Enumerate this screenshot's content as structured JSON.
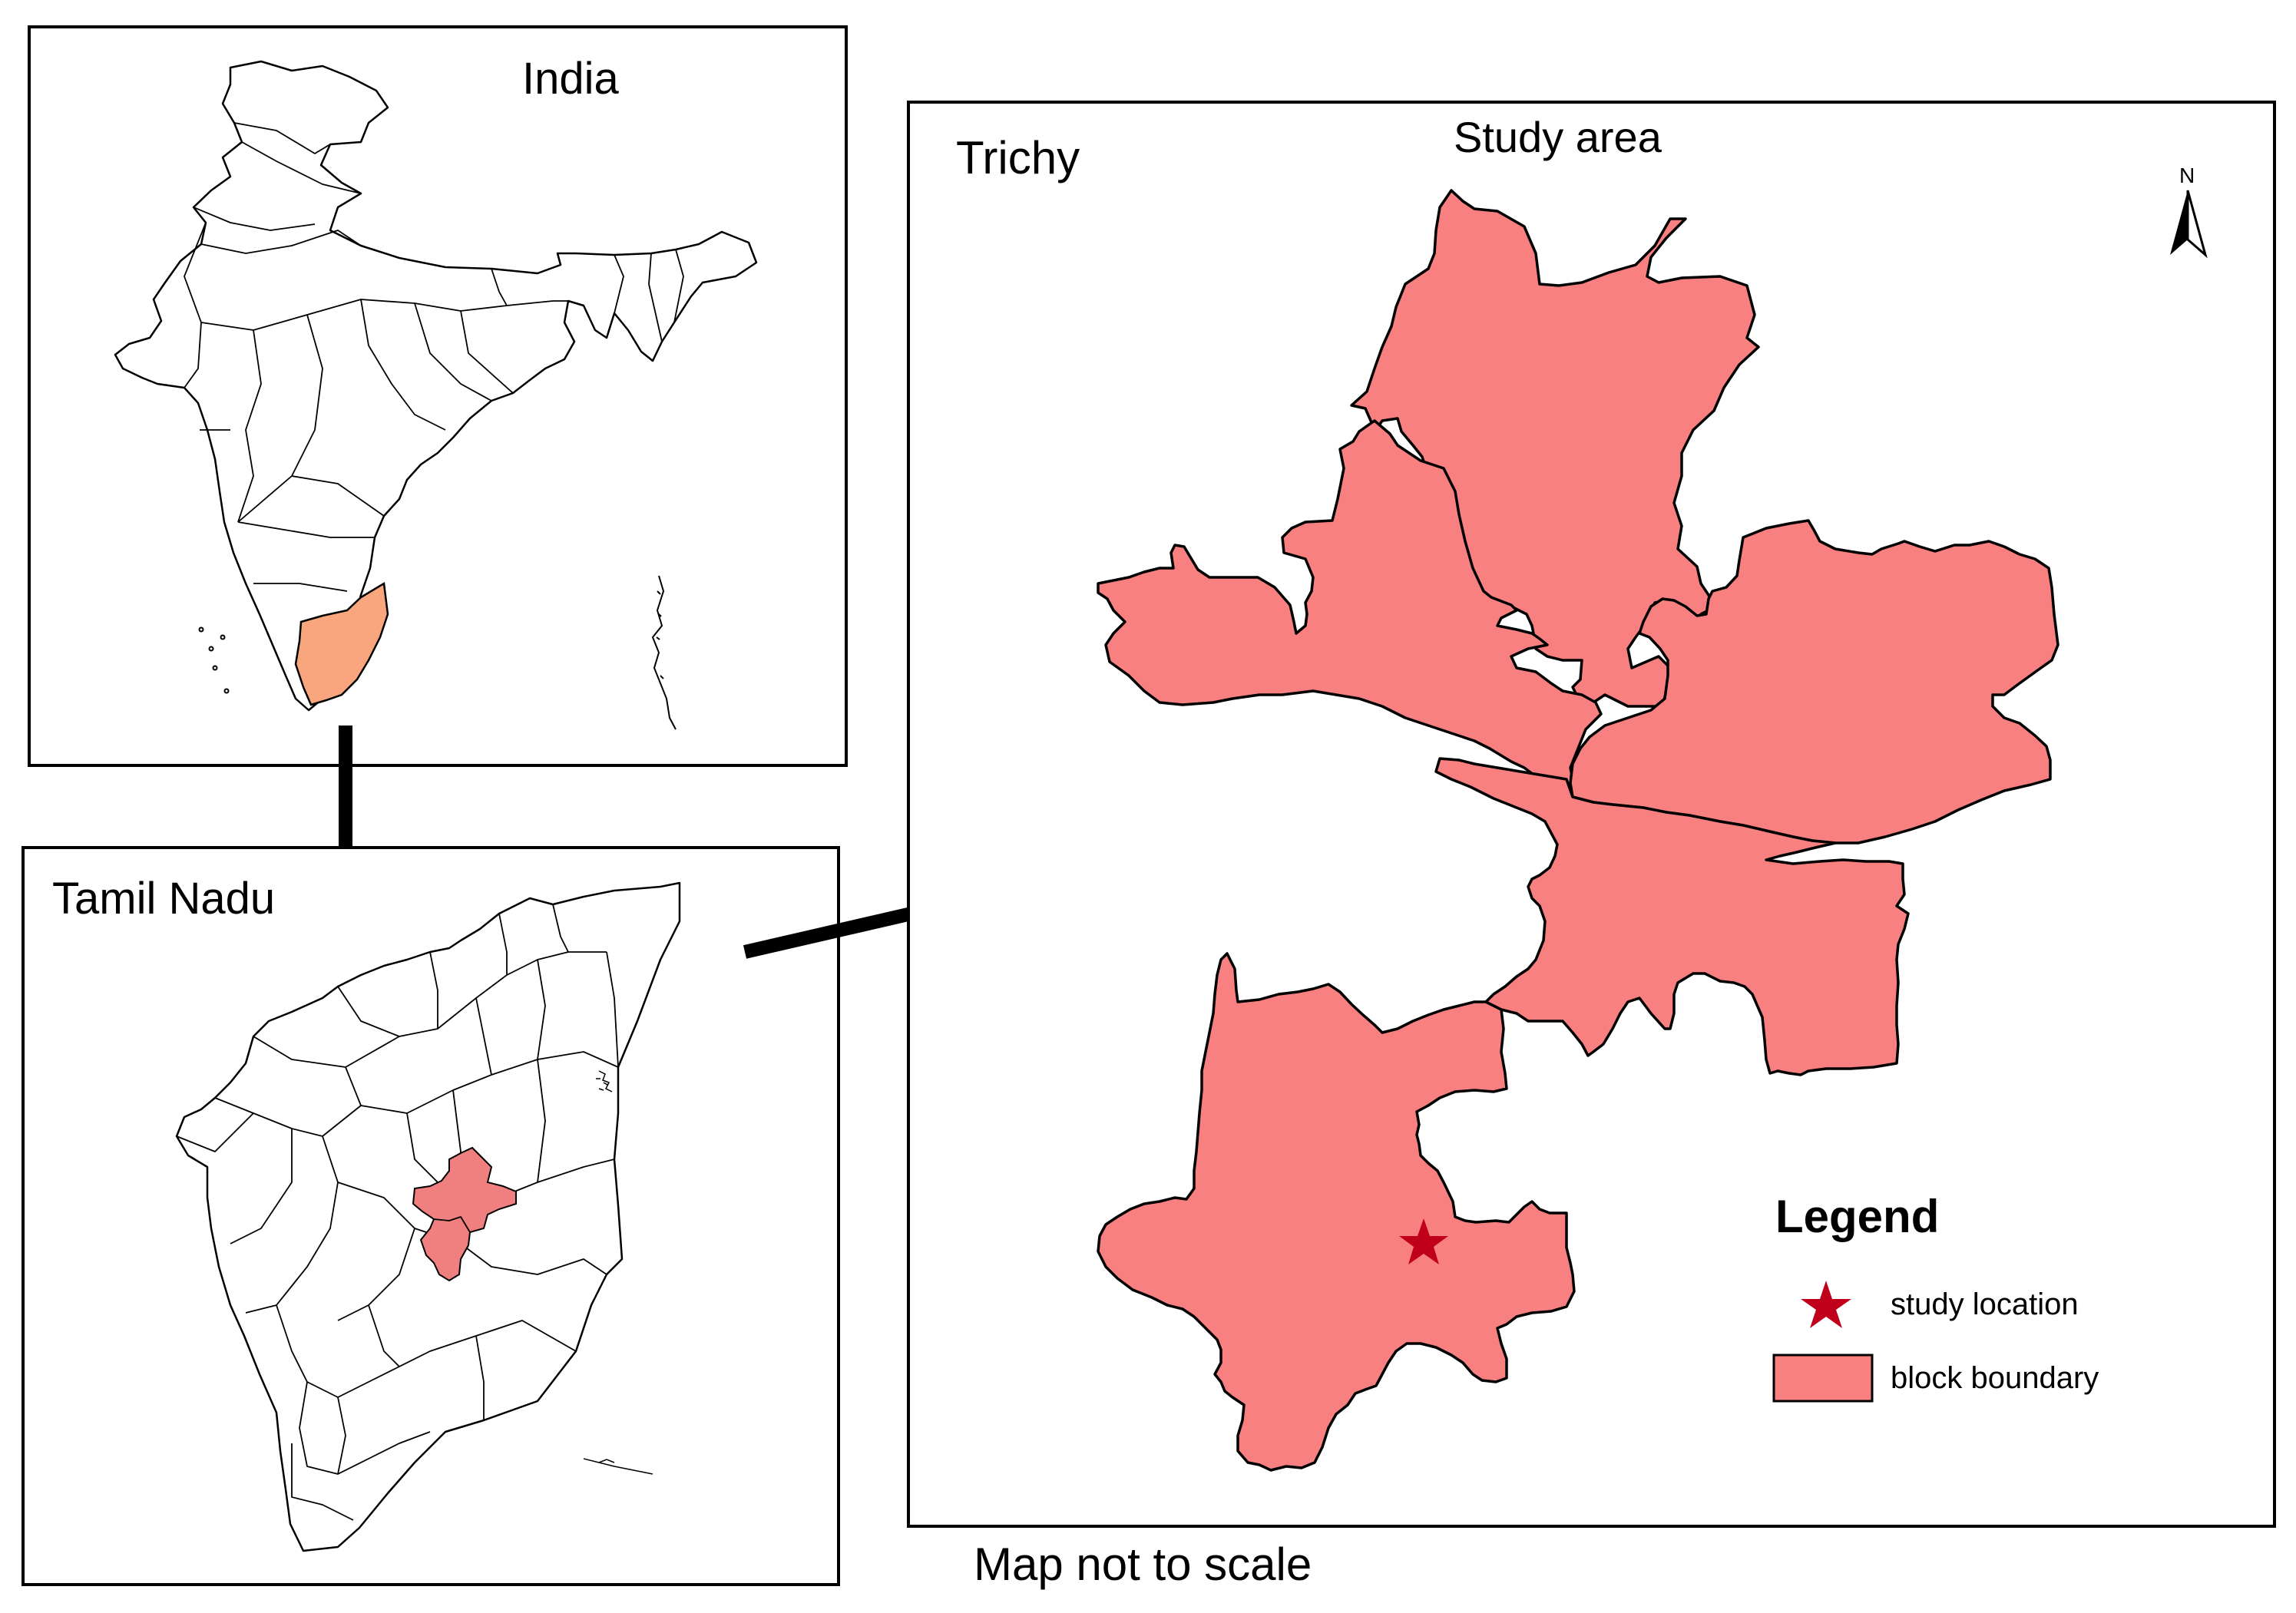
{
  "panels": {
    "india": {
      "title": "India",
      "highlight_color": "#f9a67e"
    },
    "tamil_nadu": {
      "title": "Tamil Nadu",
      "highlight_color": "#f08080"
    },
    "trichy": {
      "title": "Trichy",
      "subtitle": "Study area",
      "block_color": "#f88080"
    }
  },
  "north_arrow": {
    "label": "N"
  },
  "legend": {
    "title": "Legend",
    "items": [
      {
        "label": "study location",
        "symbol": "star",
        "color": "#c0001b"
      },
      {
        "label": "block boundary",
        "symbol": "rect",
        "color": "#f88080"
      }
    ]
  },
  "footer": {
    "note": "Map not to scale"
  }
}
